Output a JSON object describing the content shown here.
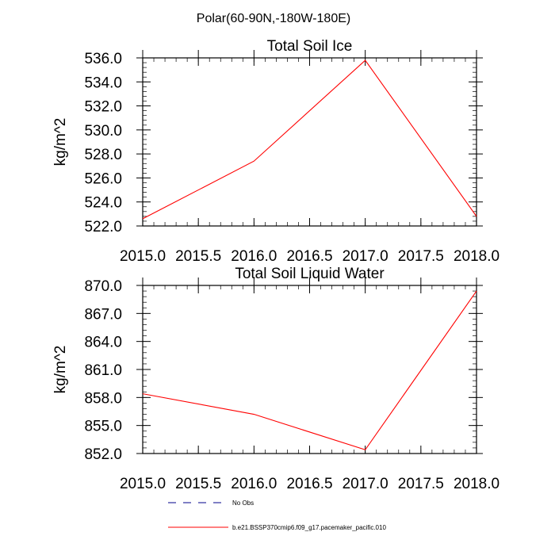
{
  "figure": {
    "title": "Polar(60-90N,-180W-180E)"
  },
  "chart_data": [
    {
      "type": "line",
      "title": "Total Soil Ice",
      "xlabel": "",
      "ylabel": "kg/m^2",
      "x": [
        2015.0,
        2016.0,
        2017.0,
        2018.0
      ],
      "series": [
        {
          "values": [
            522.6,
            527.4,
            535.8,
            522.8
          ],
          "color": "#ff0000"
        }
      ],
      "xlim": [
        2015.0,
        2018.0
      ],
      "ylim": [
        522.0,
        536.0
      ],
      "xticks": [
        2015.0,
        2015.5,
        2016.0,
        2016.5,
        2017.0,
        2017.5,
        2018.0
      ],
      "xtick_labels": [
        "2015.0",
        "2015.5",
        "2016.0",
        "2016.5",
        "2017.0",
        "2017.5",
        "2018.0"
      ],
      "yticks": [
        522.0,
        524.0,
        526.0,
        528.0,
        530.0,
        532.0,
        534.0,
        536.0
      ],
      "ytick_labels": [
        "522.0",
        "524.0",
        "526.0",
        "528.0",
        "530.0",
        "532.0",
        "534.0",
        "536.0"
      ],
      "grid": false
    },
    {
      "type": "line",
      "title": "Total Soil Liquid Water",
      "xlabel": "",
      "ylabel": "kg/m^2",
      "x": [
        2015.0,
        2016.0,
        2017.0,
        2018.0
      ],
      "series": [
        {
          "values": [
            858.4,
            856.2,
            852.4,
            869.4
          ],
          "color": "#ff0000"
        }
      ],
      "xlim": [
        2015.0,
        2018.0
      ],
      "ylim": [
        852.0,
        870.0
      ],
      "xticks": [
        2015.0,
        2015.5,
        2016.0,
        2016.5,
        2017.0,
        2017.5,
        2018.0
      ],
      "xtick_labels": [
        "2015.0",
        "2015.5",
        "2016.0",
        "2016.5",
        "2017.0",
        "2017.5",
        "2018.0"
      ],
      "yticks": [
        852.0,
        855.0,
        858.0,
        861.0,
        864.0,
        867.0,
        870.0
      ],
      "ytick_labels": [
        "852.0",
        "855.0",
        "858.0",
        "861.0",
        "864.0",
        "867.0",
        "870.0"
      ],
      "grid": false
    }
  ],
  "legend": {
    "placement": "bottom",
    "items": [
      {
        "label": "No Obs",
        "color": "#00008b",
        "dash": "dashed"
      },
      {
        "label": "b.e21.BSSP370cmip6.f09_g17.pacemaker_pacific.010",
        "color": "#ff0000",
        "dash": "solid"
      }
    ]
  }
}
